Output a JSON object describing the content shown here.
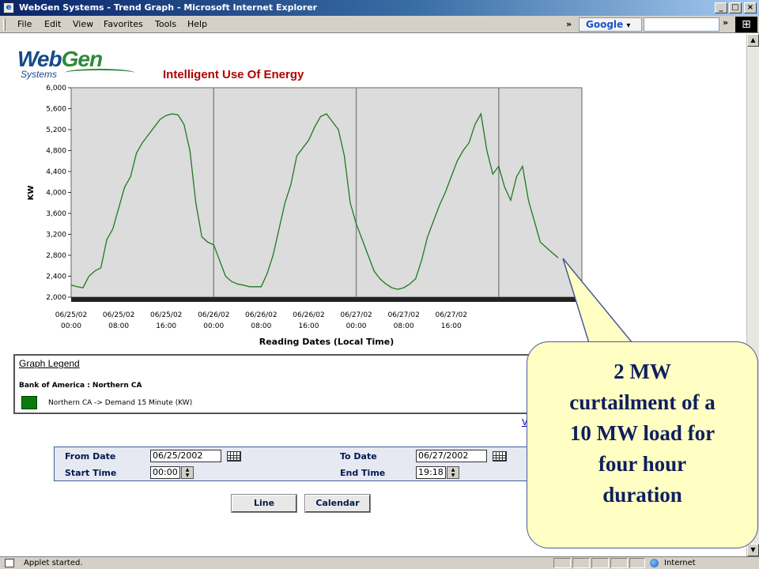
{
  "window": {
    "title": "WebGen Systems - Trend Graph - Microsoft Internet Explorer",
    "buttons": {
      "minimize": "_",
      "maximize": "□",
      "close": "×"
    }
  },
  "menu": {
    "items": [
      "File",
      "Edit",
      "View",
      "Favorites",
      "Tools",
      "Help"
    ],
    "toolbar_more": "»",
    "google_label": "Google",
    "google_dropdown": "▾",
    "more": "»"
  },
  "logo": {
    "web": "Web",
    "gen": "Gen",
    "systems": "Systems"
  },
  "chart_data": {
    "type": "line",
    "title": "Intelligent Use Of Energy",
    "ylabel": "KW",
    "xlabel": "Reading Dates (Local Time)",
    "ylim": [
      2000,
      6000
    ],
    "y_ticks": [
      "6,000",
      "5,600",
      "5,200",
      "4,800",
      "4,400",
      "4,000",
      "3,600",
      "3,200",
      "2,800",
      "2,400",
      "2,000"
    ],
    "x_ticks": [
      {
        "date": "06/25/02",
        "time": "00:00"
      },
      {
        "date": "06/25/02",
        "time": "08:00"
      },
      {
        "date": "06/25/02",
        "time": "16:00"
      },
      {
        "date": "06/26/02",
        "time": "00:00"
      },
      {
        "date": "06/26/02",
        "time": "08:00"
      },
      {
        "date": "06/26/02",
        "time": "16:00"
      },
      {
        "date": "06/27/02",
        "time": "00:00"
      },
      {
        "date": "06/27/02",
        "time": "08:00"
      },
      {
        "date": "06/27/02",
        "time": "16:00"
      }
    ],
    "x_unit": "hours since 06/25/02 00:00",
    "grid": "vertical lines at day boundaries",
    "series": [
      {
        "name": "Northern CA -> Demand 15 Minute (KW)",
        "color": "#1f7a1f",
        "points": [
          [
            0,
            2230
          ],
          [
            1,
            2200
          ],
          [
            2,
            2180
          ],
          [
            3,
            2400
          ],
          [
            4,
            2500
          ],
          [
            5,
            2560
          ],
          [
            6,
            3100
          ],
          [
            7,
            3300
          ],
          [
            8,
            3700
          ],
          [
            9,
            4100
          ],
          [
            10,
            4300
          ],
          [
            11,
            4750
          ],
          [
            12,
            4950
          ],
          [
            13,
            5100
          ],
          [
            14,
            5250
          ],
          [
            15,
            5400
          ],
          [
            16,
            5470
          ],
          [
            17,
            5500
          ],
          [
            18,
            5480
          ],
          [
            19,
            5300
          ],
          [
            20,
            4800
          ],
          [
            21,
            3800
          ],
          [
            22,
            3150
          ],
          [
            23,
            3050
          ],
          [
            24,
            3000
          ],
          [
            25,
            2700
          ],
          [
            26,
            2400
          ],
          [
            27,
            2300
          ],
          [
            28,
            2250
          ],
          [
            29,
            2230
          ],
          [
            30,
            2200
          ],
          [
            31,
            2200
          ],
          [
            32,
            2200
          ],
          [
            33,
            2450
          ],
          [
            34,
            2800
          ],
          [
            35,
            3300
          ],
          [
            36,
            3800
          ],
          [
            37,
            4150
          ],
          [
            38,
            4700
          ],
          [
            39,
            4850
          ],
          [
            40,
            5000
          ],
          [
            41,
            5250
          ],
          [
            42,
            5450
          ],
          [
            43,
            5500
          ],
          [
            44,
            5350
          ],
          [
            45,
            5200
          ],
          [
            46,
            4700
          ],
          [
            47,
            3800
          ],
          [
            48,
            3400
          ],
          [
            49,
            3100
          ],
          [
            50,
            2800
          ],
          [
            51,
            2500
          ],
          [
            52,
            2350
          ],
          [
            53,
            2250
          ],
          [
            54,
            2180
          ],
          [
            55,
            2150
          ],
          [
            56,
            2180
          ],
          [
            57,
            2250
          ],
          [
            58,
            2350
          ],
          [
            59,
            2700
          ],
          [
            60,
            3150
          ],
          [
            61,
            3450
          ],
          [
            62,
            3750
          ],
          [
            63,
            4000
          ],
          [
            64,
            4300
          ],
          [
            65,
            4600
          ],
          [
            66,
            4800
          ],
          [
            67,
            4950
          ],
          [
            68,
            5300
          ],
          [
            69,
            5500
          ],
          [
            70,
            4800
          ],
          [
            71,
            4350
          ],
          [
            72,
            4500
          ],
          [
            73,
            4100
          ],
          [
            74,
            3850
          ],
          [
            75,
            4300
          ],
          [
            76,
            4500
          ],
          [
            77,
            3850
          ],
          [
            78,
            3450
          ],
          [
            79,
            3050
          ],
          [
            80,
            2950
          ],
          [
            81,
            2850
          ],
          [
            82,
            2750
          ]
        ]
      }
    ]
  },
  "legend": {
    "title": "Graph Legend",
    "group": "Bank of America : Northern CA",
    "series": "Northern CA -> Demand 15 Minute (KW)",
    "swatch_color": "#0a7a0a"
  },
  "stray_link": "V",
  "form": {
    "from_date_label": "From Date",
    "from_date_value": "06/25/2002",
    "to_date_label": "To Date",
    "to_date_value": "06/27/2002",
    "start_time_label": "Start Time",
    "start_time_value": "00:00",
    "end_time_label": "End Time",
    "end_time_value": "19:18"
  },
  "buttons": {
    "line": "Line",
    "calendar": "Calendar"
  },
  "callout": {
    "lines": [
      "2 MW",
      "curtailment of a",
      "10 MW load for",
      "four hour",
      "duration"
    ]
  },
  "status": {
    "text": "Applet started.",
    "zone": "Internet"
  }
}
